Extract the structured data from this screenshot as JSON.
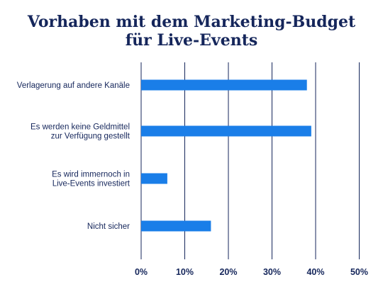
{
  "colors": {
    "title": "#15265b",
    "text": "#15265b",
    "bar": "#1a7ee8",
    "grid": "#15265b"
  },
  "chart_data": {
    "type": "bar",
    "orientation": "horizontal",
    "title_lines": [
      "Vorhaben mit dem Marketing-Budget",
      "für Live-Events"
    ],
    "categories": [
      [
        "Verlagerung auf andere Kanäle"
      ],
      [
        "Es werden keine Geldmittel",
        "zur Verfügung gestellt"
      ],
      [
        "Es wird immernoch in",
        "Live-Events investiert"
      ],
      [
        "Nicht sicher"
      ]
    ],
    "values": [
      38,
      39,
      6,
      16
    ],
    "unit": "%",
    "xlim": [
      0,
      50
    ],
    "ticks": [
      0,
      10,
      20,
      30,
      40,
      50
    ],
    "tick_labels": [
      "0%",
      "10%",
      "20%",
      "30%",
      "40%",
      "50%"
    ],
    "grid": true,
    "legend": "none"
  }
}
